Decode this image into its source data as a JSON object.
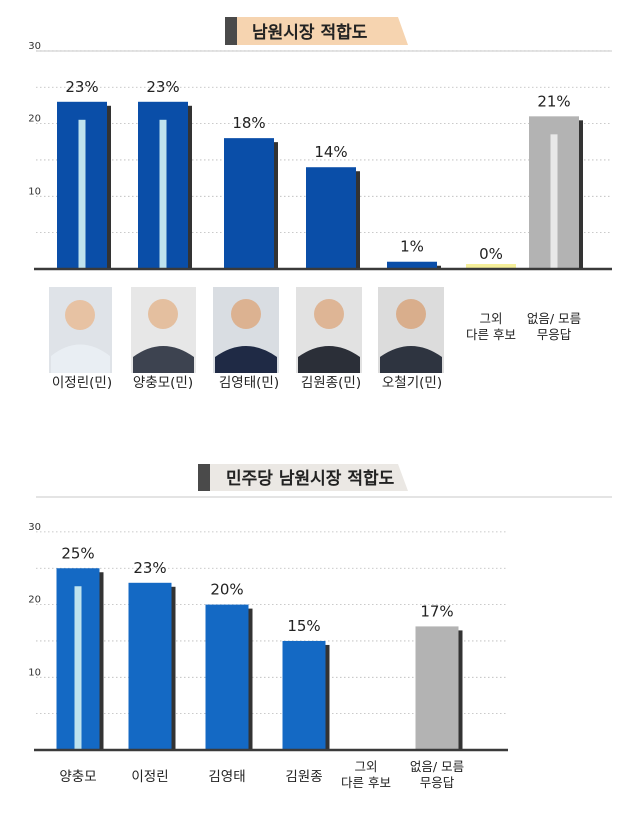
{
  "chart_data": [
    {
      "type": "bar",
      "title": "남원시장 적합도",
      "ylim": [
        0,
        30
      ],
      "yticks": [
        10,
        20,
        30
      ],
      "grid": true,
      "categories": [
        "이정린(민)",
        "양충모(민)",
        "김영태(민)",
        "김원종(민)",
        "오철기(민)",
        "그외 다른 후보",
        "없음/ 모름 무응답"
      ],
      "values": [
        23,
        23,
        18,
        14,
        1,
        0,
        21
      ],
      "value_labels": [
        "23%",
        "23%",
        "18%",
        "14%",
        "1%",
        "0%",
        "21%"
      ],
      "colors": {
        "candidate": "#0a4ea8",
        "other": "#f5ef9a",
        "none": "#b3b3b3"
      }
    },
    {
      "type": "bar",
      "title": "민주당 남원시장 적합도",
      "ylim": [
        0,
        30
      ],
      "yticks": [
        10,
        20,
        30
      ],
      "grid": true,
      "categories": [
        "양충모",
        "이정린",
        "김영태",
        "김원종",
        "그외 다른 후보",
        "없음/ 모름 무응답"
      ],
      "values": [
        25,
        23,
        20,
        15,
        0,
        17
      ],
      "value_labels": [
        "25%",
        "23%",
        "20%",
        "15%",
        "",
        "17%"
      ],
      "colors": {
        "candidate": "#1469c4",
        "none": "#b3b3b3"
      }
    }
  ]
}
